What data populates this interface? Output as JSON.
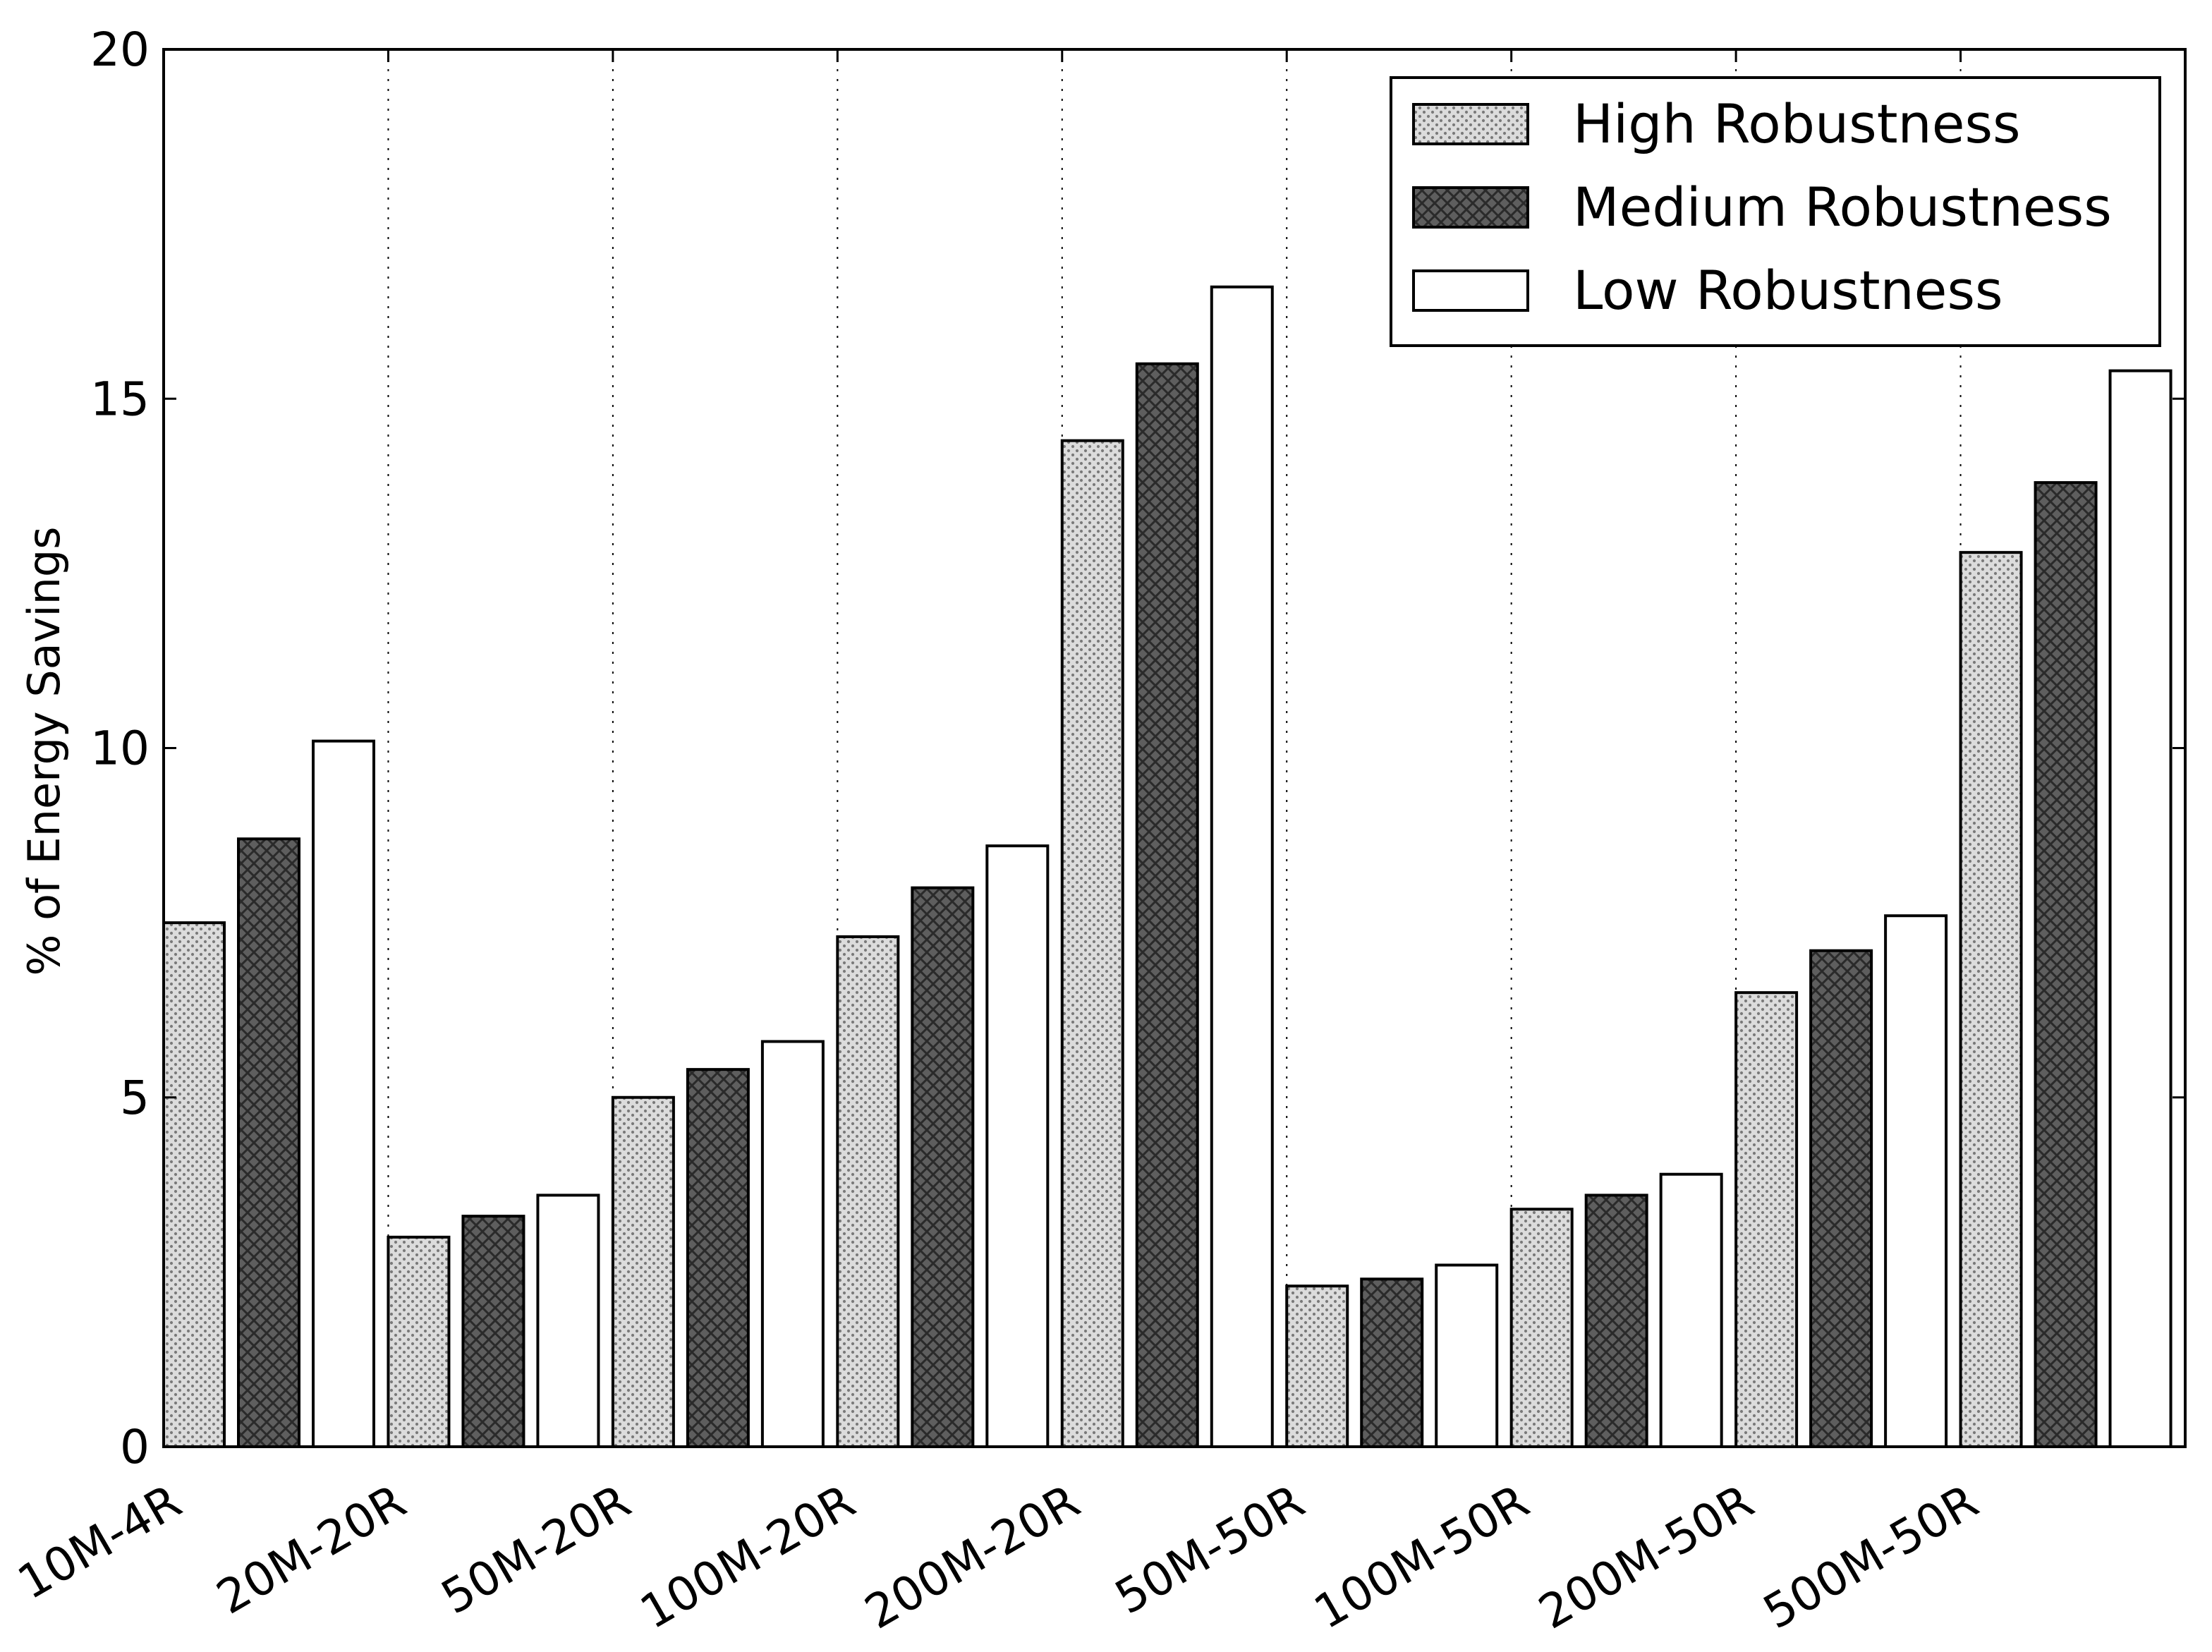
{
  "chart_data": {
    "type": "bar",
    "title": "",
    "xlabel": "",
    "ylabel": "% of Energy Savings",
    "ylim": [
      0,
      20
    ],
    "yticks": [
      "0",
      "5",
      "10",
      "15",
      "20"
    ],
    "grid": "vertical dotted lines between category groups",
    "legend_position": "top-right",
    "categories": [
      "10M-4R",
      "20M-20R",
      "50M-20R",
      "100M-20R",
      "200M-20R",
      "50M-50R",
      "100M-50R",
      "200M-50R",
      "500M-50R"
    ],
    "series": [
      {
        "name": "High Robustness",
        "pattern": "dots",
        "color": "#d9d9d9",
        "values": [
          7.5,
          3.0,
          5.0,
          7.3,
          14.4,
          2.3,
          3.4,
          6.5,
          12.8
        ]
      },
      {
        "name": "Medium Robustness",
        "pattern": "crosshatch",
        "color": "#5f5f5f",
        "values": [
          8.7,
          3.3,
          5.4,
          8.0,
          15.5,
          2.4,
          3.6,
          7.1,
          13.8
        ]
      },
      {
        "name": "Low Robustness",
        "pattern": "none",
        "color": "#ffffff",
        "values": [
          10.1,
          3.6,
          5.8,
          8.6,
          16.6,
          2.6,
          3.9,
          7.6,
          15.4
        ]
      }
    ]
  }
}
